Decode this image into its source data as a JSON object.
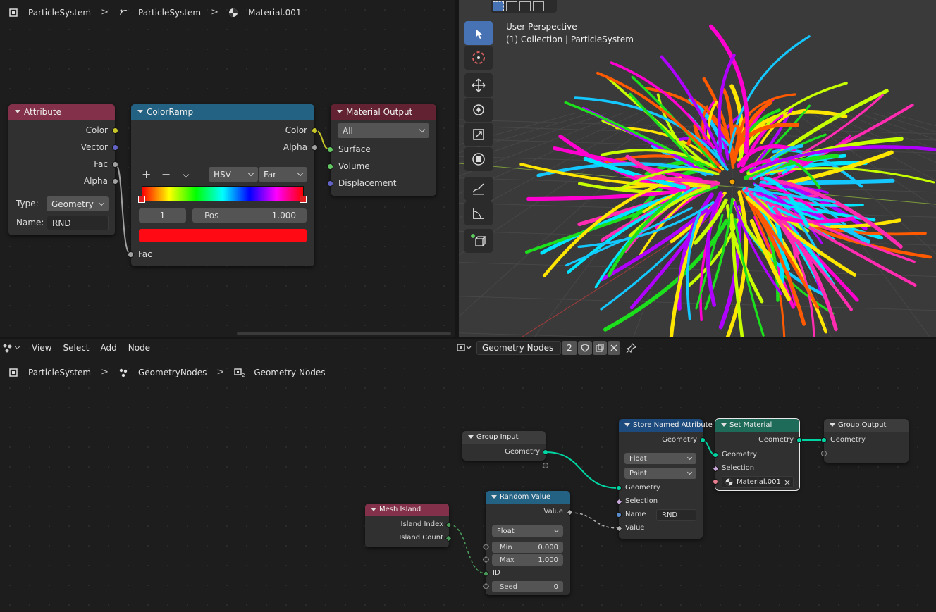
{
  "shader_editor": {
    "breadcrumb": [
      "ParticleSystem",
      "ParticleSystem",
      "Material.001"
    ],
    "nodes": {
      "attribute": {
        "title": "Attribute",
        "outputs": [
          "Color",
          "Vector",
          "Fac",
          "Alpha"
        ],
        "type_label": "Type:",
        "type_value": "Geometry",
        "name_label": "Name:",
        "name_value": "RND"
      },
      "colorramp": {
        "title": "ColorRamp",
        "outputs": [
          "Color",
          "Alpha"
        ],
        "add_symbol": "+",
        "remove_symbol": "−",
        "mode": "HSV",
        "interpolation": "Far",
        "stop_index": "1",
        "pos_label": "Pos",
        "pos_value": "1.000",
        "stop_color": "#ff0a14",
        "input": "Fac"
      },
      "material_output": {
        "title": "Material Output",
        "target": "All",
        "inputs": [
          "Surface",
          "Volume",
          "Displacement"
        ]
      }
    }
  },
  "viewport": {
    "line1": "User Perspective",
    "line2": "(1) Collection | ParticleSystem"
  },
  "geometry_editor": {
    "menu": [
      "View",
      "Select",
      "Add",
      "Node"
    ],
    "datablock_name": "Geometry Nodes",
    "user_count": "2",
    "breadcrumb": [
      "ParticleSystem",
      "GeometryNodes",
      "Geometry Nodes"
    ],
    "nodes": {
      "group_input": {
        "title": "Group Input",
        "output": "Geometry"
      },
      "mesh_island": {
        "title": "Mesh Island",
        "outputs": [
          "Island Index",
          "Island Count"
        ]
      },
      "random_value": {
        "title": "Random Value",
        "output": "Value",
        "data_type": "Float",
        "min_label": "Min",
        "min_value": "0.000",
        "max_label": "Max",
        "max_value": "1.000",
        "id_label": "ID",
        "seed_label": "Seed",
        "seed_value": "0"
      },
      "store_named_attribute": {
        "title": "Store Named Attribute",
        "output": "Geometry",
        "data_type": "Float",
        "domain": "Point",
        "inputs": [
          "Geometry",
          "Selection",
          "Name",
          "Value"
        ],
        "name_value": "RND"
      },
      "set_material": {
        "title": "Set Material",
        "output": "Geometry",
        "inputs": [
          "Geometry",
          "Selection"
        ],
        "material": "Material.001"
      },
      "group_output": {
        "title": "Group Output",
        "input": "Geometry"
      }
    }
  },
  "colors": {
    "attribute_header": "#83314a",
    "colorramp_header": "#246283",
    "output_header": "#632231",
    "store_header": "#1e4b7d",
    "set_material_header": "#1e6b5a",
    "group_header": "#3c3c3c",
    "active_tool": "#4772b3"
  }
}
